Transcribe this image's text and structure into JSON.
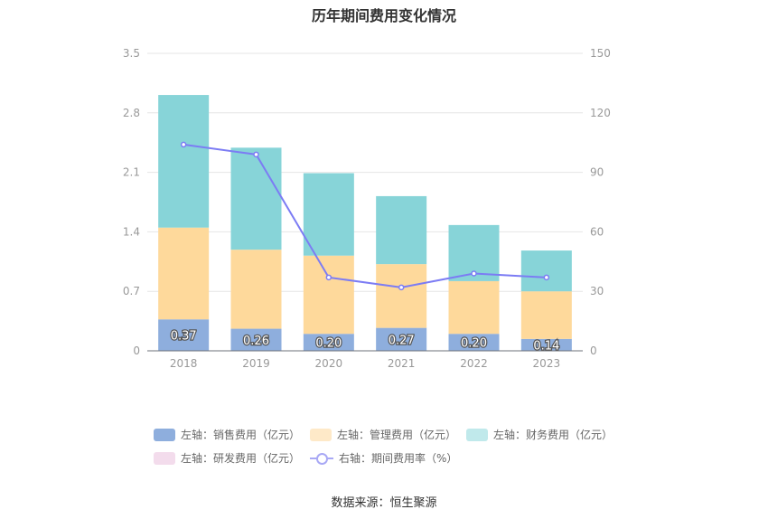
{
  "chart_data": {
    "type": "bar",
    "title": "历年期间费用变化情况",
    "categories": [
      "2018",
      "2019",
      "2020",
      "2021",
      "2022",
      "2023"
    ],
    "left_axis": {
      "min": 0,
      "max": 3.5,
      "ticks": [
        "0",
        "0.7",
        "1.4",
        "2.1",
        "2.8",
        "3.5"
      ]
    },
    "right_axis": {
      "min": 0,
      "max": 150,
      "ticks": [
        "0",
        "30",
        "60",
        "90",
        "120",
        "150"
      ]
    },
    "series": [
      {
        "name": "左轴：销售费用（亿元）",
        "axis": "left",
        "stack": true,
        "color": "#8eaedd",
        "values": [
          0.37,
          0.26,
          0.2,
          0.27,
          0.2,
          0.14
        ],
        "labels": [
          "0.37",
          "0.26",
          "0.20",
          "0.27",
          "0.20",
          "0.14"
        ]
      },
      {
        "name": "左轴：管理费用（亿元）",
        "axis": "left",
        "stack": true,
        "color": "#fed99b",
        "values": [
          1.08,
          0.93,
          0.92,
          0.75,
          0.62,
          0.56
        ]
      },
      {
        "name": "左轴：财务费用（亿元）",
        "axis": "left",
        "stack": true,
        "color": "#87d4d8",
        "values": [
          1.56,
          1.2,
          0.97,
          0.8,
          0.66,
          0.48
        ]
      },
      {
        "name": "左轴：研发费用（亿元）",
        "axis": "left",
        "stack": true,
        "color": "#f3dcec",
        "values": [
          0,
          0,
          0,
          0,
          0,
          0
        ]
      },
      {
        "name": "右轴：期间费用率（%）",
        "axis": "right",
        "type": "line",
        "color": "#7c7cf4",
        "values": [
          104,
          99,
          37,
          32,
          39,
          37
        ]
      }
    ],
    "legend": [
      {
        "label": "左轴：销售费用（亿元）",
        "color": "#8eaedd",
        "kind": "box"
      },
      {
        "label": "左轴：管理费用（亿元）",
        "color": "#fee9c8",
        "kind": "box"
      },
      {
        "label": "左轴：财务费用（亿元）",
        "color": "#c0e9eb",
        "kind": "box"
      },
      {
        "label": "左轴：研发费用（亿元）",
        "color": "#f3dcec",
        "kind": "box"
      },
      {
        "label": "右轴：期间费用率（%）",
        "color": "#a9a9f5",
        "kind": "line"
      }
    ],
    "source": "数据来源：恒生聚源"
  }
}
